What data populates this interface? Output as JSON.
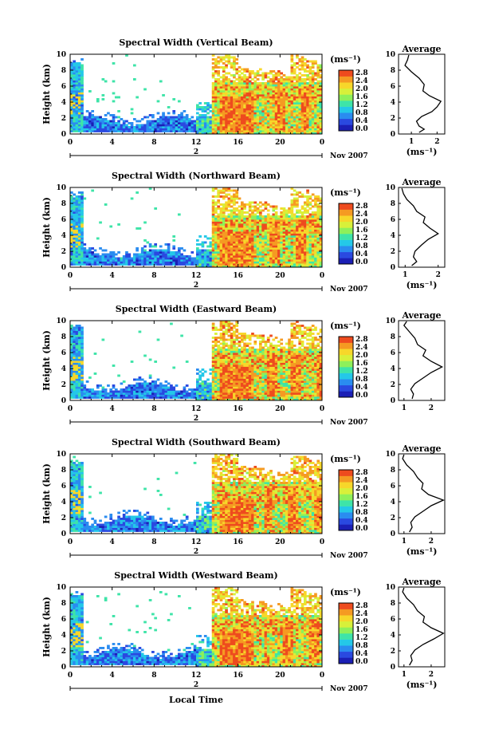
{
  "figure": {
    "xlabel": "Local Time",
    "date_label": "Nov 2007",
    "colorbar_unit": "(ms⁻¹)",
    "colorbar_ticks": [
      "2.8",
      "2.4",
      "2.0",
      "1.6",
      "1.2",
      "0.8",
      "0.4",
      "0.0"
    ],
    "avg_title": "Average",
    "avg_xlabel": "(ms⁻¹)",
    "day_marker": "2",
    "colormap": [
      "#1b1fb5",
      "#2a49e0",
      "#2a8cf0",
      "#24c8e8",
      "#3ee4a8",
      "#8ef05a",
      "#d8f03a",
      "#f7d72a",
      "#f59a22",
      "#ee4b1e"
    ]
  },
  "chart_data": [
    {
      "type": "heatmap",
      "title": "Spectral Width (Vertical Beam)",
      "ylabel": "Height (km)",
      "x_ticks": [
        "0",
        "4",
        "8",
        "12",
        "16",
        "20",
        "0"
      ],
      "y_ticks": [
        "0",
        "2",
        "4",
        "6",
        "8",
        "10"
      ],
      "xlim": [
        0,
        24
      ],
      "ylim": [
        0,
        10
      ],
      "clim": [
        0,
        3.0
      ],
      "avg": {
        "type": "line",
        "title": "Average",
        "xlabel": "(ms⁻¹)",
        "x_ticks": [
          "1",
          "2"
        ],
        "xlim": [
          0.5,
          2.3
        ],
        "points": [
          [
            1.3,
            0.2
          ],
          [
            1.5,
            0.6
          ],
          [
            1.3,
            1.0
          ],
          [
            1.2,
            1.6
          ],
          [
            1.4,
            2.2
          ],
          [
            1.8,
            2.8
          ],
          [
            2.0,
            3.4
          ],
          [
            2.15,
            4.1
          ],
          [
            1.7,
            4.8
          ],
          [
            1.45,
            5.4
          ],
          [
            1.5,
            6.2
          ],
          [
            1.3,
            7.0
          ],
          [
            1.0,
            7.8
          ],
          [
            0.75,
            8.6
          ],
          [
            0.85,
            9.3
          ],
          [
            0.9,
            9.9
          ]
        ]
      }
    },
    {
      "type": "heatmap",
      "title": "Spectral Width (Northward Beam)",
      "ylabel": "Height (km)",
      "x_ticks": [
        "0",
        "4",
        "8",
        "12",
        "16",
        "20",
        "0"
      ],
      "y_ticks": [
        "0",
        "2",
        "4",
        "6",
        "8",
        "10"
      ],
      "xlim": [
        0,
        24
      ],
      "ylim": [
        0,
        10
      ],
      "clim": [
        0,
        3.0
      ],
      "avg": {
        "type": "line",
        "title": "Average",
        "xlabel": "(ms⁻¹)",
        "x_ticks": [
          "1",
          "2"
        ],
        "xlim": [
          0.8,
          2.2
        ],
        "points": [
          [
            1.2,
            0.2
          ],
          [
            1.35,
            0.7
          ],
          [
            1.25,
            1.3
          ],
          [
            1.3,
            2.0
          ],
          [
            1.5,
            2.8
          ],
          [
            1.7,
            3.5
          ],
          [
            2.0,
            4.2
          ],
          [
            1.75,
            4.9
          ],
          [
            1.55,
            5.6
          ],
          [
            1.6,
            6.3
          ],
          [
            1.35,
            7.0
          ],
          [
            1.25,
            7.7
          ],
          [
            1.05,
            8.5
          ],
          [
            0.95,
            9.2
          ],
          [
            0.9,
            9.9
          ]
        ]
      }
    },
    {
      "type": "heatmap",
      "title": "Spectral Width (Eastward Beam)",
      "ylabel": "Height (km)",
      "x_ticks": [
        "0",
        "4",
        "8",
        "12",
        "16",
        "20",
        "0"
      ],
      "y_ticks": [
        "0",
        "2",
        "4",
        "6",
        "8",
        "10"
      ],
      "xlim": [
        0,
        24
      ],
      "ylim": [
        0,
        10
      ],
      "clim": [
        0,
        3.0
      ],
      "avg": {
        "type": "line",
        "title": "Average",
        "xlabel": "",
        "x_ticks": [
          "1",
          "2"
        ],
        "xlim": [
          0.8,
          2.5
        ],
        "points": [
          [
            1.3,
            0.2
          ],
          [
            1.35,
            0.8
          ],
          [
            1.25,
            1.4
          ],
          [
            1.4,
            2.1
          ],
          [
            1.7,
            2.8
          ],
          [
            2.0,
            3.5
          ],
          [
            2.4,
            4.2
          ],
          [
            2.0,
            4.9
          ],
          [
            1.7,
            5.6
          ],
          [
            1.8,
            6.3
          ],
          [
            1.5,
            7.0
          ],
          [
            1.4,
            7.8
          ],
          [
            1.2,
            8.6
          ],
          [
            1.0,
            9.4
          ],
          [
            1.1,
            9.9
          ]
        ]
      }
    },
    {
      "type": "heatmap",
      "title": "Spectral Width (Southward Beam)",
      "ylabel": "Height (km)",
      "x_ticks": [
        "0",
        "4",
        "8",
        "12",
        "16",
        "20",
        "0"
      ],
      "y_ticks": [
        "0",
        "2",
        "4",
        "6",
        "8",
        "10"
      ],
      "xlim": [
        0,
        24
      ],
      "ylim": [
        0,
        10
      ],
      "clim": [
        0,
        3.0
      ],
      "avg": {
        "type": "line",
        "title": "Average",
        "xlabel": "(ms⁻¹)",
        "x_ticks": [
          "1",
          "2"
        ],
        "xlim": [
          0.8,
          2.5
        ],
        "points": [
          [
            1.2,
            0.2
          ],
          [
            1.3,
            0.8
          ],
          [
            1.25,
            1.4
          ],
          [
            1.4,
            2.1
          ],
          [
            1.7,
            2.8
          ],
          [
            2.0,
            3.5
          ],
          [
            2.45,
            4.2
          ],
          [
            1.9,
            4.9
          ],
          [
            1.65,
            5.6
          ],
          [
            1.7,
            6.3
          ],
          [
            1.5,
            7.0
          ],
          [
            1.35,
            7.8
          ],
          [
            1.1,
            8.6
          ],
          [
            0.95,
            9.4
          ],
          [
            1.0,
            9.9
          ]
        ]
      }
    },
    {
      "type": "heatmap",
      "title": "Spectral Width (Westward Beam)",
      "ylabel": "Height (km)",
      "x_ticks": [
        "0",
        "4",
        "8",
        "12",
        "16",
        "20",
        "0"
      ],
      "y_ticks": [
        "0",
        "2",
        "4",
        "6",
        "8",
        "10"
      ],
      "xlim": [
        0,
        24
      ],
      "ylim": [
        0,
        10
      ],
      "clim": [
        0,
        3.0
      ],
      "avg": {
        "type": "line",
        "title": "Average",
        "xlabel": "(ms⁻¹)",
        "x_ticks": [
          "1",
          "2"
        ],
        "xlim": [
          0.8,
          2.5
        ],
        "points": [
          [
            1.2,
            0.2
          ],
          [
            1.3,
            0.8
          ],
          [
            1.25,
            1.4
          ],
          [
            1.4,
            2.1
          ],
          [
            1.7,
            2.8
          ],
          [
            2.1,
            3.5
          ],
          [
            2.45,
            4.2
          ],
          [
            2.0,
            4.9
          ],
          [
            1.7,
            5.6
          ],
          [
            1.75,
            6.3
          ],
          [
            1.5,
            7.0
          ],
          [
            1.35,
            7.8
          ],
          [
            1.1,
            8.6
          ],
          [
            0.95,
            9.4
          ],
          [
            1.0,
            9.9
          ]
        ]
      }
    }
  ]
}
